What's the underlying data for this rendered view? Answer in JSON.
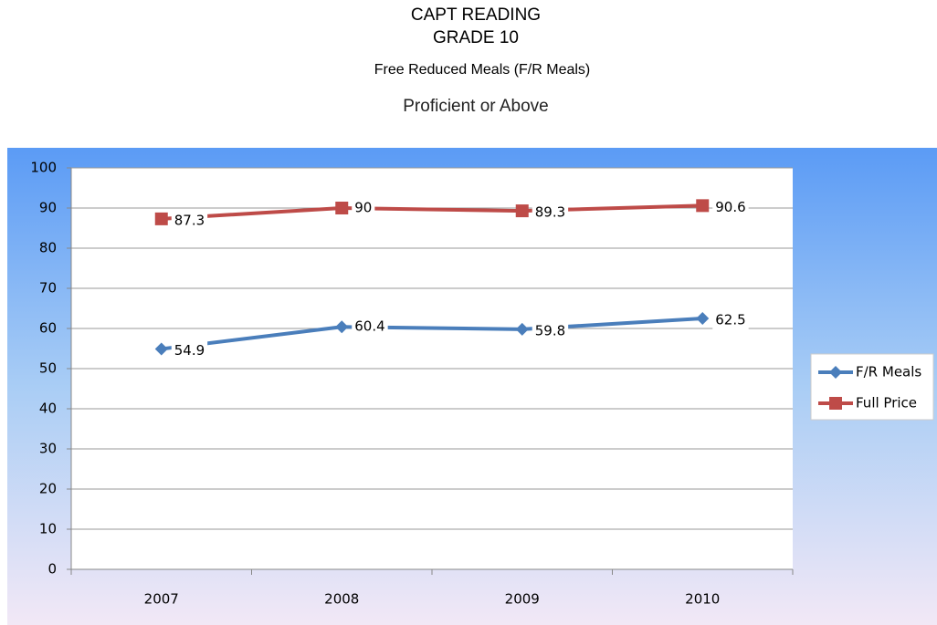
{
  "chart_data": {
    "type": "line",
    "title": [
      "CAPT READING",
      "GRADE 10"
    ],
    "subtitles": [
      "Free Reduced Meals (F/R Meals)",
      "Proficient or Above"
    ],
    "categories": [
      "2007",
      "2008",
      "2009",
      "2010"
    ],
    "series": [
      {
        "name": "F/R Meals",
        "color": "#4a7ebb",
        "marker": "diamond",
        "values": [
          54.9,
          60.4,
          59.8,
          62.5
        ]
      },
      {
        "name": "Full Price",
        "color": "#be4b48",
        "marker": "square",
        "values": [
          87.3,
          90,
          89.3,
          90.6
        ]
      }
    ],
    "ylim": [
      0,
      100
    ],
    "yticks": [
      0,
      10,
      20,
      30,
      40,
      50,
      60,
      70,
      80,
      90,
      100
    ],
    "grid": true,
    "legend": "right",
    "data_labels": true
  }
}
